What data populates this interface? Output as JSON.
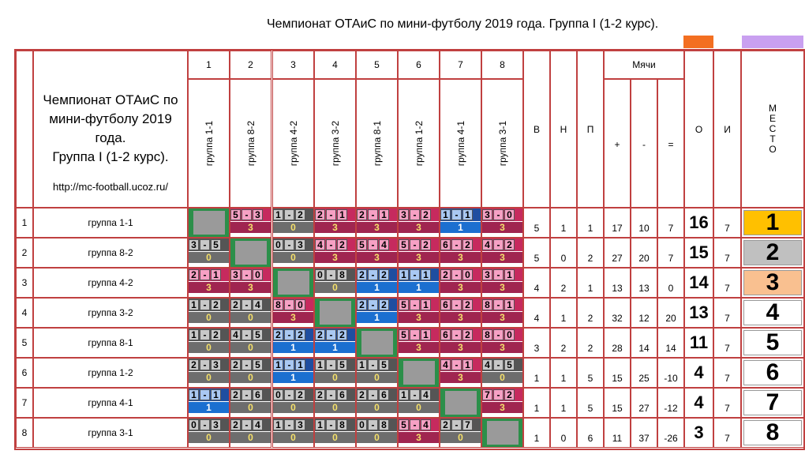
{
  "title": "Чемпионат ОТАиС по мини-футболу 2019 года. Группа I (1-2 курс).",
  "colors": {
    "orange_bar": "#f36f21",
    "violet_bar": "#c9a0f0",
    "win": "#c62a5e",
    "draw": "#1f4ea0",
    "loss": "#6d6d6d"
  },
  "description": {
    "lines": [
      "Чемпионат ОТАиС по",
      "мини-футболу 2019",
      "года.",
      "Группа I (1-2 курс)."
    ],
    "url": "http://mc-football.ucoz.ru/"
  },
  "header": {
    "col_numbers": [
      "1",
      "2",
      "3",
      "4",
      "5",
      "6",
      "7",
      "8"
    ],
    "teams_vertical": [
      "группа 1-1",
      "группа 8-2",
      "группа 4-2",
      "группа 3-2",
      "группа 8-1",
      "группа 1-2",
      "группа 4-1",
      "группа 3-1"
    ],
    "w": "В",
    "d": "Н",
    "l": "П",
    "balls": "Мячи",
    "gf": "+",
    "ga": "-",
    "gd": "=",
    "pts": "О",
    "games": "И",
    "place_letters": [
      "М",
      "Е",
      "С",
      "Т",
      "О"
    ]
  },
  "rows": [
    {
      "num": "1",
      "team": "группа 1-1",
      "w": "5",
      "d": "1",
      "l": "1",
      "gf": "17",
      "ga": "10",
      "gd": "7",
      "pts": "16",
      "games": "7",
      "place": "1",
      "place_color": "#ffc000",
      "results": [
        null,
        {
          "t": "win",
          "s": [
            "5",
            "3"
          ],
          "p": "3"
        },
        {
          "t": "loss",
          "s": [
            "1",
            "2"
          ],
          "p": "0"
        },
        {
          "t": "win",
          "s": [
            "2",
            "1"
          ],
          "p": "3"
        },
        {
          "t": "win",
          "s": [
            "2",
            "1"
          ],
          "p": "3"
        },
        {
          "t": "win",
          "s": [
            "3",
            "2"
          ],
          "p": "3"
        },
        {
          "t": "draw",
          "s": [
            "1",
            "1"
          ],
          "p": "1"
        },
        {
          "t": "win",
          "s": [
            "3",
            "0"
          ],
          "p": "3"
        }
      ]
    },
    {
      "num": "2",
      "team": "группа 8-2",
      "w": "5",
      "d": "0",
      "l": "2",
      "gf": "27",
      "ga": "20",
      "gd": "7",
      "pts": "15",
      "games": "7",
      "place": "2",
      "place_color": "#c0c0c0",
      "results": [
        {
          "t": "loss",
          "s": [
            "3",
            "5"
          ],
          "p": "0"
        },
        null,
        {
          "t": "loss",
          "s": [
            "0",
            "3"
          ],
          "p": "0"
        },
        {
          "t": "win",
          "s": [
            "4",
            "2"
          ],
          "p": "3"
        },
        {
          "t": "win",
          "s": [
            "5",
            "4"
          ],
          "p": "3"
        },
        {
          "t": "win",
          "s": [
            "5",
            "2"
          ],
          "p": "3"
        },
        {
          "t": "win",
          "s": [
            "6",
            "2"
          ],
          "p": "3"
        },
        {
          "t": "win",
          "s": [
            "4",
            "2"
          ],
          "p": "3"
        }
      ]
    },
    {
      "num": "3",
      "team": "группа 4-2",
      "w": "4",
      "d": "2",
      "l": "1",
      "gf": "13",
      "ga": "13",
      "gd": "0",
      "pts": "14",
      "games": "7",
      "place": "3",
      "place_color": "#f9c090",
      "results": [
        {
          "t": "win",
          "s": [
            "2",
            "1"
          ],
          "p": "3"
        },
        {
          "t": "win",
          "s": [
            "3",
            "0"
          ],
          "p": "3"
        },
        null,
        {
          "t": "loss",
          "s": [
            "0",
            "8"
          ],
          "p": "0"
        },
        {
          "t": "draw",
          "s": [
            "2",
            "2"
          ],
          "p": "1"
        },
        {
          "t": "draw",
          "s": [
            "1",
            "1"
          ],
          "p": "1"
        },
        {
          "t": "win",
          "s": [
            "2",
            "0"
          ],
          "p": "3"
        },
        {
          "t": "win",
          "s": [
            "3",
            "1"
          ],
          "p": "3"
        }
      ]
    },
    {
      "num": "4",
      "team": "группа 3-2",
      "w": "4",
      "d": "1",
      "l": "2",
      "gf": "32",
      "ga": "12",
      "gd": "20",
      "pts": "13",
      "games": "7",
      "place": "4",
      "place_color": "#ffffff",
      "results": [
        {
          "t": "loss",
          "s": [
            "1",
            "2"
          ],
          "p": "0"
        },
        {
          "t": "loss",
          "s": [
            "2",
            "4"
          ],
          "p": "0"
        },
        {
          "t": "win",
          "s": [
            "8",
            "0"
          ],
          "p": "3"
        },
        null,
        {
          "t": "draw",
          "s": [
            "2",
            "2"
          ],
          "p": "1"
        },
        {
          "t": "win",
          "s": [
            "5",
            "1"
          ],
          "p": "3"
        },
        {
          "t": "win",
          "s": [
            "6",
            "2"
          ],
          "p": "3"
        },
        {
          "t": "win",
          "s": [
            "8",
            "1"
          ],
          "p": "3"
        }
      ]
    },
    {
      "num": "5",
      "team": "группа 8-1",
      "w": "3",
      "d": "2",
      "l": "2",
      "gf": "28",
      "ga": "14",
      "gd": "14",
      "pts": "11",
      "games": "7",
      "place": "5",
      "place_color": "#ffffff",
      "results": [
        {
          "t": "loss",
          "s": [
            "1",
            "2"
          ],
          "p": "0"
        },
        {
          "t": "loss",
          "s": [
            "4",
            "5"
          ],
          "p": "0"
        },
        {
          "t": "draw",
          "s": [
            "2",
            "2"
          ],
          "p": "1"
        },
        {
          "t": "draw",
          "s": [
            "2",
            "2"
          ],
          "p": "1"
        },
        null,
        {
          "t": "win",
          "s": [
            "5",
            "1"
          ],
          "p": "3"
        },
        {
          "t": "win",
          "s": [
            "6",
            "2"
          ],
          "p": "3"
        },
        {
          "t": "win",
          "s": [
            "8",
            "0"
          ],
          "p": "3"
        }
      ]
    },
    {
      "num": "6",
      "team": "группа 1-2",
      "w": "1",
      "d": "1",
      "l": "5",
      "gf": "15",
      "ga": "25",
      "gd": "-10",
      "pts": "4",
      "games": "7",
      "place": "6",
      "place_color": "#ffffff",
      "results": [
        {
          "t": "loss",
          "s": [
            "2",
            "3"
          ],
          "p": "0"
        },
        {
          "t": "loss",
          "s": [
            "2",
            "5"
          ],
          "p": "0"
        },
        {
          "t": "draw",
          "s": [
            "1",
            "1"
          ],
          "p": "1"
        },
        {
          "t": "loss",
          "s": [
            "1",
            "5"
          ],
          "p": "0"
        },
        {
          "t": "loss",
          "s": [
            "1",
            "5"
          ],
          "p": "0"
        },
        null,
        {
          "t": "win",
          "s": [
            "4",
            "1"
          ],
          "p": "3"
        },
        {
          "t": "loss",
          "s": [
            "4",
            "5"
          ],
          "p": "0"
        }
      ]
    },
    {
      "num": "7",
      "team": "группа 4-1",
      "w": "1",
      "d": "1",
      "l": "5",
      "gf": "15",
      "ga": "27",
      "gd": "-12",
      "pts": "4",
      "games": "7",
      "place": "7",
      "place_color": "#ffffff",
      "results": [
        {
          "t": "draw",
          "s": [
            "1",
            "1"
          ],
          "p": "1"
        },
        {
          "t": "loss",
          "s": [
            "2",
            "6"
          ],
          "p": "0"
        },
        {
          "t": "loss",
          "s": [
            "0",
            "2"
          ],
          "p": "0"
        },
        {
          "t": "loss",
          "s": [
            "2",
            "6"
          ],
          "p": "0"
        },
        {
          "t": "loss",
          "s": [
            "2",
            "6"
          ],
          "p": "0"
        },
        {
          "t": "loss",
          "s": [
            "1",
            "4"
          ],
          "p": "0"
        },
        null,
        {
          "t": "win",
          "s": [
            "7",
            "2"
          ],
          "p": "3"
        }
      ]
    },
    {
      "num": "8",
      "team": "группа 3-1",
      "w": "1",
      "d": "0",
      "l": "6",
      "gf": "11",
      "ga": "37",
      "gd": "-26",
      "pts": "3",
      "games": "7",
      "place": "8",
      "place_color": "#ffffff",
      "results": [
        {
          "t": "loss",
          "s": [
            "0",
            "3"
          ],
          "p": "0"
        },
        {
          "t": "loss",
          "s": [
            "2",
            "4"
          ],
          "p": "0"
        },
        {
          "t": "loss",
          "s": [
            "1",
            "3"
          ],
          "p": "0"
        },
        {
          "t": "loss",
          "s": [
            "1",
            "8"
          ],
          "p": "0"
        },
        {
          "t": "loss",
          "s": [
            "0",
            "8"
          ],
          "p": "0"
        },
        {
          "t": "win",
          "s": [
            "5",
            "4"
          ],
          "p": "3"
        },
        {
          "t": "loss",
          "s": [
            "2",
            "7"
          ],
          "p": "0"
        },
        null
      ]
    }
  ]
}
